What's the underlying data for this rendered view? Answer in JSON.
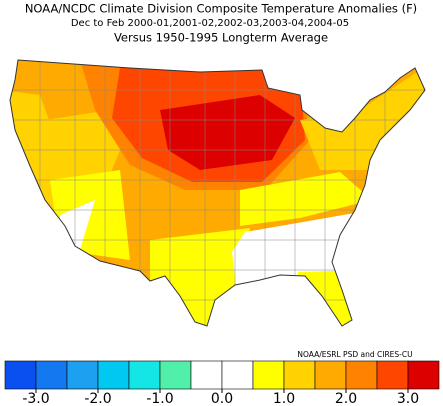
{
  "header": {
    "title": "NOAA/NCDC Climate Division Composite Temperature Anomalies (F)",
    "subtitle": "Dec to Feb  2000-01,2001-02,2002-03,2003-04,2004-05",
    "baseline": "Versus 1950-1995 Longterm Average"
  },
  "credit": "NOAA/ESRL PSD and CIRES-CU",
  "colorbar": {
    "vlim": [
      -3.5,
      3.5
    ],
    "colors": [
      "#0a50f0",
      "#1478f0",
      "#1ea0f0",
      "#00c8f0",
      "#14e6e6",
      "#50f0aa",
      "#ffffff",
      "#ffffff",
      "#ffff00",
      "#ffd200",
      "#ffaa00",
      "#ff8200",
      "#ff4600",
      "#dc0000"
    ],
    "ticks": [
      {
        "value": -3,
        "label": "-3.0"
      },
      {
        "value": -2,
        "label": "-2.0"
      },
      {
        "value": -1,
        "label": "-1.0"
      },
      {
        "value": 0,
        "label": "0.0"
      },
      {
        "value": 1,
        "label": "1.0"
      },
      {
        "value": 2,
        "label": "2.0"
      },
      {
        "value": 3,
        "label": "3.0"
      }
    ]
  }
}
